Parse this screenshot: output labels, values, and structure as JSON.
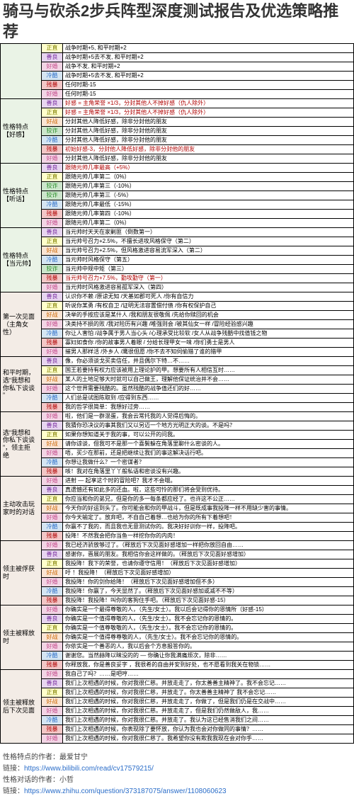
{
  "title": "骑马与砍杀2步兵阵型深度测试报告及优选策略推荐",
  "colors": {
    "正直": {
      "bg": "#ffffcc",
      "fg": "#808000"
    },
    "好战": {
      "bg": "#f9e5d5",
      "fg": "#cc6600"
    },
    "残暴": {
      "bg": "#f2c7c7",
      "fg": "#b00000"
    },
    "善良": {
      "bg": "#e7d5f0",
      "fg": "#7a2fa0"
    },
    "狡诈": {
      "bg": "#cce5cc",
      "fg": "#228b22"
    },
    "冷酷": {
      "bg": "#d5e5f2",
      "fg": "#2a6dc9"
    },
    "好婚": {
      "bg": "#f2d5e5",
      "fg": "#c44a8b"
    }
  },
  "cat_colors": {
    "a": "#eaf3e6",
    "b": "#f3ece6"
  },
  "sections": [
    {
      "name": "",
      "color": "a",
      "rows": [
        {
          "tag": "正直",
          "desc": "战争时期+5, 和平时期+2"
        },
        {
          "tag": "善良",
          "desc": "战争时期+5去不发, 和平时期+2"
        },
        {
          "tag": "好婚",
          "desc": "战争不发, 和平时期+2"
        },
        {
          "tag": "冷酷",
          "desc": "战争时期+5去不发, 和平时期+2"
        },
        {
          "tag": "残暴",
          "desc": "任何时期-15"
        },
        {
          "tag": "好婚",
          "desc": "任何时期-15"
        }
      ]
    },
    {
      "name": "性格特点\n【好感】",
      "color": "a",
      "rows": [
        {
          "tag": "善良",
          "desc": "好感 = 主角荣誉 ×1/3，分封其他人不掉好感（仇人除外）",
          "fg": "#b00000"
        },
        {
          "tag": "正直",
          "desc": "好感 = 主角荣誉 ×1/3，分封其他人不掉好感（仇人除外）",
          "fg": "#b00000"
        },
        {
          "tag": "好战",
          "desc": "分封其他人降低好感，除非分封他的朋友"
        },
        {
          "tag": "狡诈",
          "desc": "分封其他人降低好感，除非分封他的朋友"
        },
        {
          "tag": "冷酷",
          "desc": "分封其他人降低好感，除非分封他的朋友"
        },
        {
          "tag": "残暴",
          "desc": "初始好感-3，分封他人降低好感，除非分封他的朋友",
          "fg": "#b00000"
        },
        {
          "tag": "好婚",
          "desc": "分封其他人降低好感，除非分封他的朋友"
        }
      ]
    },
    {
      "name": "性格特点\n【听话】",
      "color": "a",
      "rows": [
        {
          "tag": "善良",
          "desc": "跟随元帅几率最高（+5%）",
          "fg": "#b00000"
        },
        {
          "tag": "正直",
          "desc": "跟随元帅几率第二（0%）"
        },
        {
          "tag": "狡诈",
          "desc": "跟随元帅几率第三（-10%）"
        },
        {
          "tag": "狡诈",
          "desc": "跟随元帅几率第三（-5%）"
        },
        {
          "tag": "冷酷",
          "desc": "跟随元帅几率最低（-15%）"
        },
        {
          "tag": "残暴",
          "desc": "跟随元帅几率第四（-10%）"
        },
        {
          "tag": "好婚",
          "desc": "跟随元帅几率第二（0%）"
        }
      ]
    },
    {
      "name": "性格特点\n【当元帅】",
      "color": "a",
      "rows": [
        {
          "tag": "善良",
          "desc": "当元帅时天天在家剿匪（倒数第一）"
        },
        {
          "tag": "正直",
          "desc": "当元帅号召力+2.5%，不擅长进攻风格保守（第二）"
        },
        {
          "tag": "好战",
          "desc": "当元帅号召力+2.5%，但风格激进容易流军深入（第二）"
        },
        {
          "tag": "冷酷",
          "desc": "当元帅时风格保守（第五）"
        },
        {
          "tag": "狡诈",
          "desc": "当元帅中规中矩（第三）"
        },
        {
          "tag": "残暴",
          "desc": "当元帅号召力+7.5%，勤攻勤守（第一）",
          "fg": "#b00000"
        },
        {
          "tag": "好婚",
          "desc": "当元帅时风格激进容易孤军深入（第四）"
        }
      ]
    },
    {
      "name": "第一次见面\n（主角女\n性）",
      "color": "b",
      "rows": [
        {
          "tag": "善良",
          "desc": "认识你不赖 /原谅无知 /天基如郡可死人 /你有自信力"
        },
        {
          "tag": "正直",
          "desc": "听说你某勇 /有权自卫 /证明无法容置偿付债 /你有权保护自己"
        },
        {
          "tag": "好战",
          "desc": "决举的手按应该是某什人 /我和朋友很敬佩 /先给你赎回的机会"
        },
        {
          "tag": "好婚",
          "desc": "决类持不损的败 /我对险历有兴趣 /唯强则会 /被其仙女一样 /冒险经验感兴趣"
        },
        {
          "tag": "冷酷",
          "desc": "你让人害怕 /战争属于男人当心头 /心理承受比较软 /女人从战争残酷中找值钱之物"
        },
        {
          "tag": "残暴",
          "desc": "寡妇如食你 /你的故事男人着眼 / 分给长理甲女一味 /你们勇士是男人"
        },
        {
          "tag": "好婚",
          "desc": "摧男人那样活 /外乡人 /鹰很但愿 /你不去不知伺偷猎了谁的猎甲"
        }
      ]
    },
    {
      "name": "和平时期，\n选“我想和\n你私下谈谈\n”",
      "color": "b",
      "rows": [
        {
          "tag": "善良",
          "desc": "像，你必须谈戈买卖信任，并且偶尔下特…不……"
        },
        {
          "tag": "正直",
          "desc": "国王若要持有权力应该被用上理论护的甲。想要所有人相信互时……"
        },
        {
          "tag": "好战",
          "desc": "某人的土地足够大时就可以自己做王，理解他保证统治并不会……"
        },
        {
          "tag": "好婚",
          "desc": "这个世界需要残酷的。虽然残酷的战争值还们的好……"
        },
        {
          "tag": "冷酷",
          "desc": "人们总是试图陈取到 /应得到东西……"
        },
        {
          "tag": "残暴",
          "desc": "我的哲学很简单：我想好过旁……"
        }
      ]
    },
    {
      "name": "选“我想和\n你私下谈谈\n”，领主拒\n绝",
      "color": "b",
      "rows": [
        {
          "tag": "好婚",
          "desc": "啦，他们是一群混蛋，我会云常托我的人觉得后悔的。"
        },
        {
          "tag": "善良",
          "desc": "我猜你恐决议的事其我们又以另迈一个地方光明正大的谈。不是吗？"
        },
        {
          "tag": "正直",
          "desc": "如果你想知道关于我的事，可以公开的问我。"
        },
        {
          "tag": "好战",
          "desc": "请你谅谈，但我可不是那一个喜鬓躲在角落里聊什么密谈的人。"
        },
        {
          "tag": "好婚",
          "desc": "唔，买少在那前，还是把继续让我们的事这解决话行吧。"
        },
        {
          "tag": "冷酷",
          "desc": "你想让我做什么？一个密谋者？"
        },
        {
          "tag": "残暴",
          "desc": "咳！我对在角落里丫丫般私语和密谈没有兴趣。"
        }
      ]
    },
    {
      "name": "主动攻击玩\n家时的对话",
      "color": "b",
      "rows": [
        {
          "tag": "好婚",
          "desc": "进射 — 起享这个时的冒险吧？我才不会哦。"
        },
        {
          "tag": "善良",
          "desc": "真遗憾还有如此多的还血。啦，这些可怜的那们将会受到优待。"
        },
        {
          "tag": "正直",
          "desc": "你应当和你的弟兄，但是你的多一每条都应经了。也许这不公正……"
        },
        {
          "tag": "好战",
          "desc": "今天你的好运到头了。你可能会和你的甲战斗，但是既成事我投降一样不用缺少害的事情。"
        },
        {
          "tag": "好婚",
          "desc": "你今天输定了。放弃吧，不自自己着想…也给为你的所有下着想吧！"
        },
        {
          "tag": "冷酷",
          "desc": "你赢不了我的，而且我也无意测试你的。我决好好训你一样，投降吧。"
        },
        {
          "tag": "残暴",
          "desc": "投降！不然我会把你当鱼一样挖你你的内肉！"
        }
      ]
    },
    {
      "name": "领主被俘获\n时",
      "color": "b",
      "rows": [
        {
          "tag": "好婚",
          "desc": "我已经济骄放够过了。（释放后下次见面好感增加一样把你放回自由……"
        },
        {
          "tag": "善良",
          "desc": "感谢你，晋展的朋友。我相信你会这样做的。（释放后下次见面好感增加）"
        },
        {
          "tag": "正直",
          "desc": "我投降！我下的荣誉，也请你遵守信用！（释放后下次见面好感增加）"
        },
        {
          "tag": "好战",
          "desc": "吁 ！我投降！（释放后下次见面好感增加）"
        },
        {
          "tag": "好婚",
          "desc": "我投降！你的剑你给降！（释放后下次见面好感增加但不多）"
        },
        {
          "tag": "冷酷",
          "desc": "我投降！你赢了，今天显然了。（释放后下次见面好感加或减不不等）"
        },
        {
          "tag": "残暴",
          "desc": "我投降！我投降！叫你的客狗住手吧。（释放后下次见面好感-15）"
        }
      ]
    },
    {
      "name": "领主被释放\n时",
      "color": "b",
      "rows": [
        {
          "tag": "好婚",
          "desc": "你确实是一个最得尊敬的人，（先生/女士）。我以后会记得你的恩情所（好感-15）"
        },
        {
          "tag": "善良",
          "desc": "你确实是一个值得尊敬的人，（先生/女士）。我不会忘记你的恩情的。"
        },
        {
          "tag": "正直",
          "desc": "你确实是一个值尊敬敬的人，（先生/女士）。我不会忘记你的恩情的。"
        },
        {
          "tag": "好战",
          "desc": "你确实是一个值得尊尊敬的人，（先生/女士）。我不会忘记你的恩情的。"
        },
        {
          "tag": "好婚",
          "desc": "你依实是一个善恶的人，我以后会个方息报答你的。"
        },
        {
          "tag": "冷酷",
          "desc": "谢谢您。当然赫降以昧没的的 — 你确让你我满痛烦次，除非……"
        },
        {
          "tag": "残暴",
          "desc": "你释放我，你是善良妥字 ，我很希的自由并安到好处，也不愿看到我关在物锁……"
        }
      ]
    },
    {
      "name": "领主被释放\n后下次见面",
      "color": "b",
      "rows": [
        {
          "tag": "好婚",
          "desc": "我自己了吗？……是吧哼……"
        },
        {
          "tag": "善良",
          "desc": "我们上次相遇的时候，你对我很仁慈。并放走走了，你太善善主精神了。我不会忘记……"
        },
        {
          "tag": "正直",
          "desc": "我们上次相遇的时候，你对我很仁慈，并放走了。你太善善主精神了 我不会忘记……"
        },
        {
          "tag": "好战",
          "desc": "我们上次相遇的时候，你对我很仁慈，并放走走了，你做了，但是我们仍是在交战中……"
        },
        {
          "tag": "好婚",
          "desc": "我们上次相遇的时候，你对我很仁慈。并放走走了，但是我们仍然做敌人，我……"
        },
        {
          "tag": "冷酷",
          "desc": "我们上次相遇的时候，你对我很仁慈。并放走了。我认为这已经售消我们之间……"
        },
        {
          "tag": "残暴",
          "desc": "我们上次相遇的时候，你表现除了要怀放，你认为我也会对你做同的事情？……"
        },
        {
          "tag": "好婚",
          "desc": "我们上次相遇的时候，你对我很仁慈了。我希望你没有欺我我现在会对你手……"
        }
      ]
    }
  ],
  "footer": [
    {
      "label": "性格特点的作者：最爱甘宁",
      "link": "https://www.bilibili.com/read/cv17579215/"
    },
    {
      "label": "性格对话的作者：小哲",
      "link": "https://www.zhihu.com/question/373187075/answer/1108060623"
    }
  ]
}
